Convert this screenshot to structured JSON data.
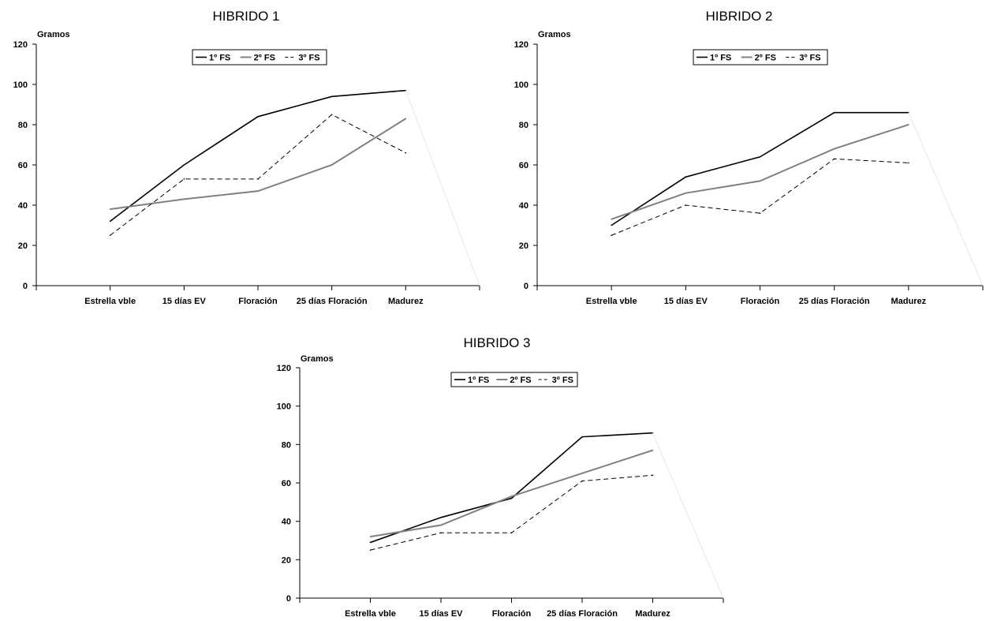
{
  "chart_data": [
    {
      "type": "line",
      "title": "HIBRIDO 1",
      "xlabel": "",
      "ylabel": "Gramos",
      "ylim": [
        0,
        120
      ],
      "yticks": [
        0,
        20,
        40,
        60,
        80,
        100,
        120
      ],
      "categories": [
        "Estrella vble",
        "15 días EV",
        "Floración",
        "25 días Floración",
        "Madurez"
      ],
      "grid": false,
      "legend": "top-center",
      "series": [
        {
          "name": "1º FS",
          "color": "#000000",
          "dash": "solid",
          "values": [
            32,
            60,
            84,
            94,
            97
          ]
        },
        {
          "name": "2º FS",
          "color": "#808080",
          "dash": "solid",
          "values": [
            38,
            43,
            47,
            60,
            83
          ]
        },
        {
          "name": "3º FS",
          "color": "#000000",
          "dash": "dashed",
          "values": [
            25,
            53,
            53,
            85,
            66
          ]
        }
      ]
    },
    {
      "type": "line",
      "title": "HIBRIDO 2",
      "xlabel": "",
      "ylabel": "Gramos",
      "ylim": [
        0,
        120
      ],
      "yticks": [
        0,
        20,
        40,
        60,
        80,
        100,
        120
      ],
      "categories": [
        "Estrella vble",
        "15 días EV",
        "Floración",
        "25 días Floración",
        "Madurez"
      ],
      "grid": false,
      "legend": "top-center",
      "series": [
        {
          "name": "1º FS",
          "color": "#000000",
          "dash": "solid",
          "values": [
            30,
            54,
            64,
            86,
            86
          ]
        },
        {
          "name": "2º FS",
          "color": "#808080",
          "dash": "solid",
          "values": [
            33,
            46,
            52,
            68,
            80
          ]
        },
        {
          "name": "3º FS",
          "color": "#000000",
          "dash": "dashed",
          "values": [
            25,
            40,
            36,
            63,
            61
          ]
        }
      ]
    },
    {
      "type": "line",
      "title": "HIBRIDO 3",
      "xlabel": "",
      "ylabel": "Gramos",
      "ylim": [
        0,
        120
      ],
      "yticks": [
        0,
        20,
        40,
        60,
        80,
        100,
        120
      ],
      "categories": [
        "Estrella vble",
        "15 días EV",
        "Floración",
        "25 días Floración",
        "Madurez"
      ],
      "grid": false,
      "legend": "top-center",
      "series": [
        {
          "name": "1º FS",
          "color": "#000000",
          "dash": "solid",
          "values": [
            29,
            42,
            52,
            84,
            86
          ]
        },
        {
          "name": "2º FS",
          "color": "#808080",
          "dash": "solid",
          "values": [
            32,
            38,
            53,
            65,
            77
          ]
        },
        {
          "name": "3º FS",
          "color": "#000000",
          "dash": "dashed",
          "values": [
            25,
            34,
            34,
            61,
            64
          ]
        }
      ]
    }
  ]
}
